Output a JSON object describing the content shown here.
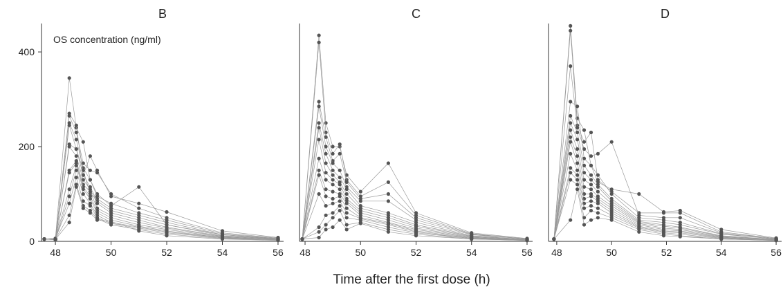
{
  "figure": {
    "xlabel": "Time after the first dose (h)",
    "ylabel": "OS concentration (ng/ml)",
    "marker_color": "#555555",
    "line_color": "#9a9a9a"
  },
  "chart_data": [
    {
      "type": "line",
      "title": "B",
      "ylabel": "OS concentration (ng/ml)",
      "xlabel": "Time after the first dose (h)",
      "xlim": [
        47.5,
        56.2
      ],
      "ylim": [
        0,
        460
      ],
      "xticks": [
        "48",
        "50",
        "52",
        "54",
        "56"
      ],
      "yticks": [
        "0",
        "200",
        "400"
      ],
      "x": [
        47.6,
        48.0,
        48.5,
        48.75,
        49.0,
        49.25,
        49.5,
        50.0,
        51.0,
        52.0,
        54.0,
        56.0
      ],
      "series": [
        {
          "values": [
            5,
            6,
            345,
            240,
            210,
            130,
            100,
            75,
            115,
            35,
            14,
            5
          ]
        },
        {
          "values": [
            5,
            3,
            270,
            245,
            140,
            180,
            150,
            95,
            80,
            62,
            22,
            8
          ]
        },
        {
          "values": [
            5,
            4,
            265,
            230,
            165,
            150,
            145,
            100,
            70,
            50,
            18,
            7
          ]
        },
        {
          "values": [
            5,
            5,
            250,
            215,
            155,
            130,
            95,
            80,
            60,
            45,
            16,
            6
          ]
        },
        {
          "values": [
            5,
            6,
            245,
            195,
            150,
            100,
            90,
            70,
            55,
            40,
            14,
            6
          ]
        },
        {
          "values": [
            5,
            3,
            205,
            195,
            140,
            115,
            85,
            65,
            50,
            35,
            12,
            5
          ]
        },
        {
          "values": [
            5,
            5,
            200,
            180,
            130,
            110,
            80,
            60,
            45,
            30,
            11,
            5
          ]
        },
        {
          "values": [
            5,
            4,
            150,
            170,
            120,
            105,
            70,
            55,
            40,
            28,
            10,
            4
          ]
        },
        {
          "values": [
            5,
            6,
            145,
            165,
            115,
            95,
            65,
            50,
            35,
            25,
            9,
            4
          ]
        },
        {
          "values": [
            5,
            5,
            110,
            160,
            110,
            90,
            60,
            45,
            32,
            22,
            8,
            3
          ]
        },
        {
          "values": [
            5,
            4,
            95,
            150,
            100,
            80,
            55,
            40,
            30,
            20,
            8,
            3
          ]
        },
        {
          "values": [
            5,
            6,
            80,
            135,
            85,
            75,
            50,
            38,
            28,
            18,
            7,
            3
          ]
        },
        {
          "values": [
            5,
            5,
            55,
            120,
            75,
            65,
            48,
            35,
            25,
            15,
            6,
            3
          ]
        },
        {
          "values": [
            5,
            4,
            40,
            115,
            70,
            60,
            45,
            42,
            22,
            12,
            5,
            2
          ]
        }
      ]
    },
    {
      "type": "line",
      "title": "C",
      "xlim": [
        47.8,
        56.2
      ],
      "ylim": [
        0,
        460
      ],
      "xticks": [
        "48",
        "50",
        "52",
        "54",
        "56"
      ],
      "yticks": [],
      "x": [
        47.9,
        48.5,
        48.75,
        49.0,
        49.25,
        49.5,
        50.0,
        51.0,
        52.0,
        54.0,
        56.0
      ],
      "series": [
        {
          "values": [
            5,
            435,
            250,
            200,
            200,
            140,
            105,
            165,
            60,
            18,
            6
          ]
        },
        {
          "values": [
            5,
            420,
            230,
            185,
            205,
            130,
            95,
            125,
            55,
            16,
            5
          ]
        },
        {
          "values": [
            5,
            295,
            220,
            170,
            185,
            125,
            90,
            100,
            50,
            15,
            5
          ]
        },
        {
          "values": [
            5,
            285,
            200,
            165,
            150,
            115,
            85,
            85,
            45,
            14,
            5
          ]
        },
        {
          "values": [
            5,
            250,
            185,
            150,
            135,
            110,
            75,
            60,
            40,
            12,
            4
          ]
        },
        {
          "values": [
            5,
            240,
            165,
            140,
            125,
            100,
            70,
            55,
            35,
            11,
            4
          ]
        },
        {
          "values": [
            5,
            215,
            145,
            130,
            120,
            90,
            65,
            50,
            32,
            10,
            4
          ]
        },
        {
          "values": [
            5,
            175,
            130,
            120,
            110,
            85,
            60,
            45,
            28,
            9,
            3
          ]
        },
        {
          "values": [
            5,
            150,
            110,
            105,
            100,
            80,
            55,
            40,
            25,
            8,
            3
          ]
        },
        {
          "values": [
            5,
            140,
            95,
            90,
            95,
            70,
            50,
            38,
            22,
            7,
            3
          ]
        },
        {
          "values": [
            5,
            100,
            75,
            80,
            85,
            60,
            48,
            35,
            20,
            6,
            3
          ]
        },
        {
          "values": [
            5,
            30,
            55,
            60,
            75,
            50,
            45,
            30,
            18,
            6,
            2
          ]
        },
        {
          "values": [
            5,
            20,
            35,
            50,
            65,
            35,
            40,
            25,
            15,
            5,
            2
          ]
        },
        {
          "values": [
            5,
            8,
            25,
            30,
            45,
            25,
            38,
            20,
            12,
            5,
            2
          ]
        }
      ]
    },
    {
      "type": "line",
      "title": "D",
      "xlim": [
        47.7,
        56.2
      ],
      "ylim": [
        0,
        460
      ],
      "xticks": [
        "48",
        "50",
        "52",
        "54",
        "56"
      ],
      "yticks": [],
      "x": [
        47.9,
        48.5,
        48.75,
        49.0,
        49.25,
        49.5,
        50.0,
        51.0,
        51.9,
        52.5,
        54.0,
        56.0
      ],
      "series": [
        {
          "values": [
            5,
            455,
            260,
            235,
            160,
            125,
            110,
            100,
            62,
            65,
            25,
            7
          ]
        },
        {
          "values": [
            5,
            445,
            245,
            210,
            230,
            130,
            105,
            60,
            60,
            60,
            20,
            6
          ]
        },
        {
          "values": [
            5,
            370,
            240,
            195,
            180,
            185,
            210,
            55,
            50,
            50,
            18,
            6
          ]
        },
        {
          "values": [
            5,
            295,
            285,
            175,
            160,
            140,
            100,
            50,
            45,
            40,
            16,
            5
          ]
        },
        {
          "values": [
            5,
            265,
            230,
            160,
            140,
            120,
            90,
            45,
            40,
            35,
            15,
            5
          ]
        },
        {
          "values": [
            5,
            250,
            215,
            145,
            130,
            115,
            85,
            42,
            35,
            30,
            12,
            4
          ]
        },
        {
          "values": [
            5,
            235,
            195,
            130,
            120,
            105,
            80,
            40,
            32,
            28,
            11,
            4
          ]
        },
        {
          "values": [
            5,
            220,
            180,
            115,
            110,
            95,
            75,
            38,
            28,
            25,
            10,
            4
          ]
        },
        {
          "values": [
            5,
            210,
            165,
            100,
            100,
            90,
            70,
            35,
            25,
            22,
            9,
            3
          ]
        },
        {
          "values": [
            5,
            185,
            150,
            90,
            95,
            85,
            65,
            32,
            22,
            20,
            8,
            3
          ]
        },
        {
          "values": [
            5,
            155,
            140,
            80,
            85,
            80,
            60,
            30,
            20,
            18,
            7,
            3
          ]
        },
        {
          "values": [
            5,
            145,
            130,
            70,
            75,
            70,
            55,
            28,
            18,
            15,
            6,
            2
          ]
        },
        {
          "values": [
            5,
            130,
            120,
            50,
            65,
            60,
            50,
            25,
            15,
            12,
            5,
            2
          ]
        },
        {
          "values": [
            5,
            45,
            110,
            35,
            45,
            50,
            45,
            20,
            12,
            10,
            5,
            2
          ]
        }
      ]
    }
  ]
}
